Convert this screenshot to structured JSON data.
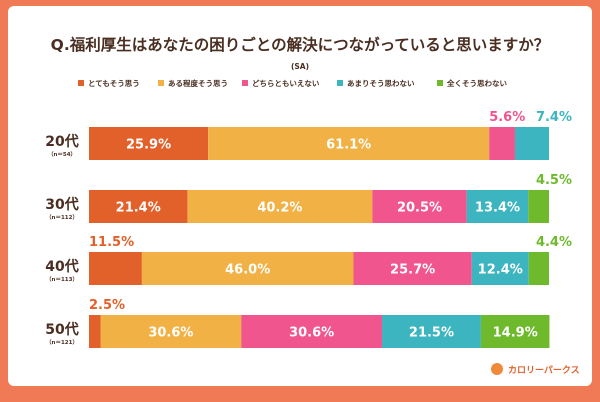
{
  "chart_data": {
    "type": "bar",
    "orientation": "horizontal",
    "stacked": true,
    "title": "Q.福利厚生はあなたの困りごとの解決につながっていると思いますか？",
    "subtitle": "(SA)",
    "legend_position": "top",
    "categories": [
      "20代",
      "30代",
      "40代",
      "50代"
    ],
    "category_sublabels": [
      "（n＝54）",
      "（n＝112）",
      "（n＝113）",
      "（n＝121）"
    ],
    "series": [
      {
        "name": "とてもそう思う",
        "color": "#e2602a",
        "values": [
          25.9,
          21.4,
          11.5,
          2.5
        ]
      },
      {
        "name": "ある程度そう思う",
        "color": "#f2b144",
        "values": [
          61.1,
          40.2,
          46.0,
          30.6
        ]
      },
      {
        "name": "どちらともいえない",
        "color": "#f0558e",
        "values": [
          5.6,
          20.5,
          25.7,
          30.6
        ]
      },
      {
        "name": "あまりそう思わない",
        "color": "#3db5c0",
        "values": [
          7.4,
          13.4,
          12.4,
          21.5
        ]
      },
      {
        "name": "全くそう思わない",
        "color": "#6fba2c",
        "values": [
          0,
          4.5,
          4.4,
          14.9
        ]
      }
    ],
    "xlim": [
      0,
      100
    ],
    "unit": "%",
    "grid": false
  },
  "logo": "カロリーパークス",
  "colors": {
    "background": "#ef7a55",
    "title": "#4a2e22"
  }
}
